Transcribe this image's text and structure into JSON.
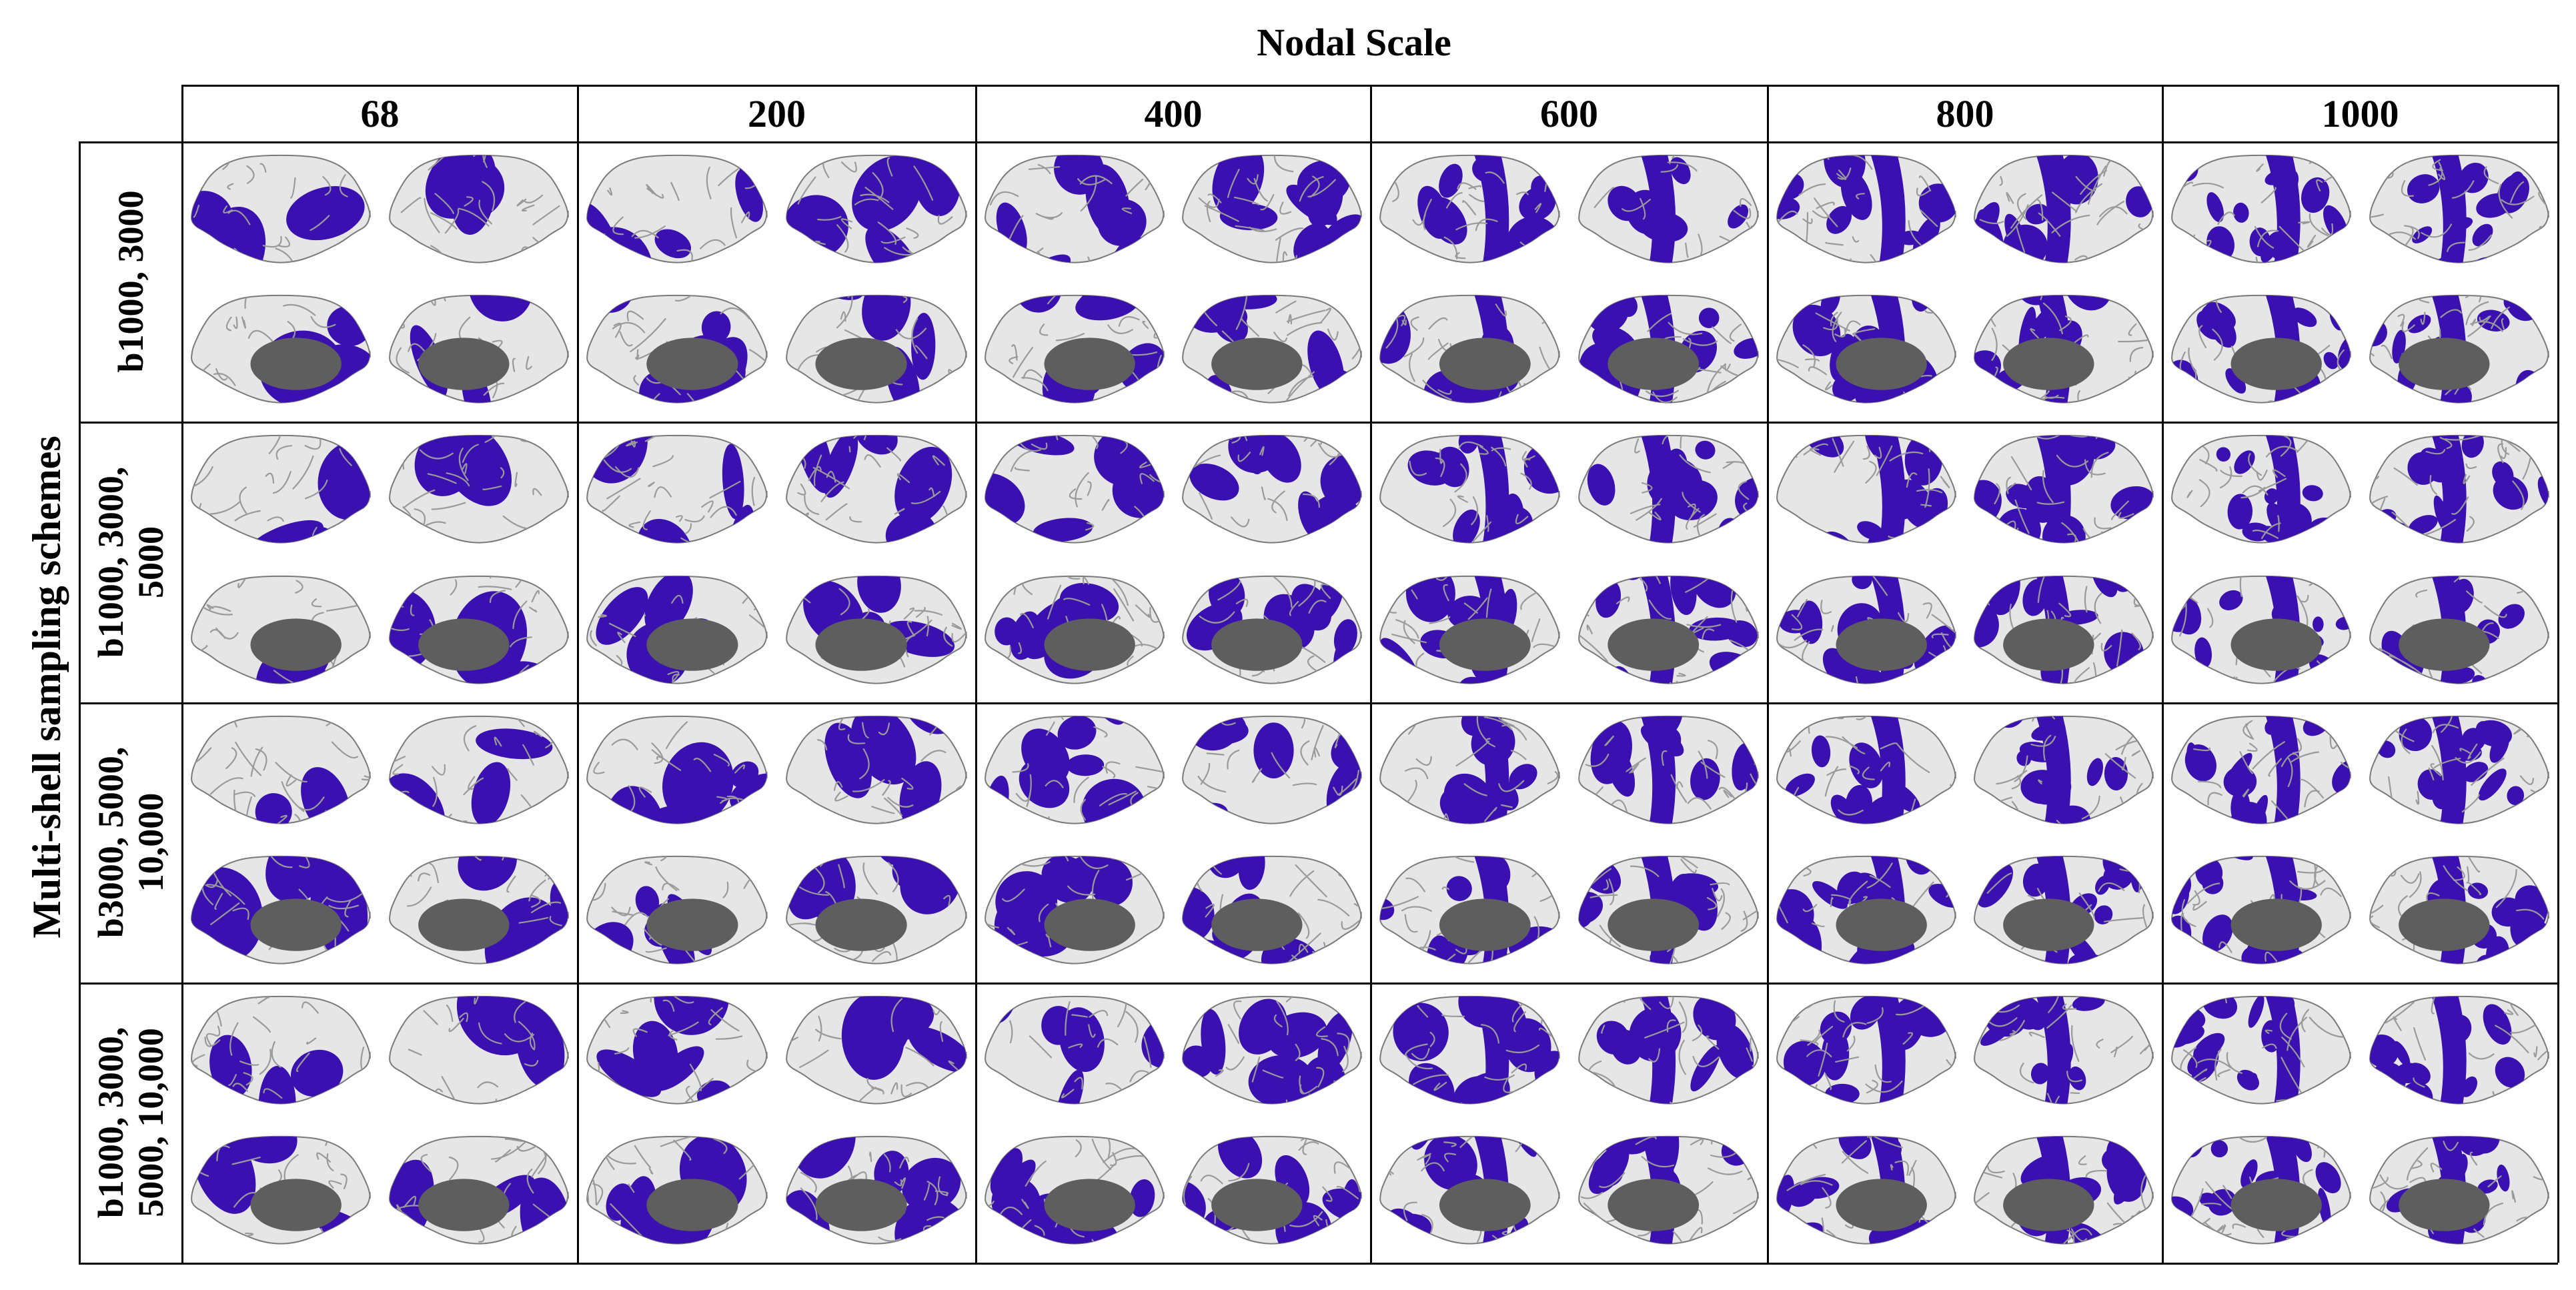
{
  "figure": {
    "title": "Nodal Scale",
    "y_axis_label": "Multi-shell  sampling schemes",
    "columns": [
      "68",
      "200",
      "400",
      "600",
      "800",
      "1000"
    ],
    "rows": [
      {
        "lines": [
          "b1000, 3000"
        ]
      },
      {
        "lines": [
          "b1000, 3000,",
          "5000"
        ]
      },
      {
        "lines": [
          "b3000, 5000,",
          "10,000"
        ]
      },
      {
        "lines": [
          "b1000, 3000,",
          "5000, 10,000"
        ]
      }
    ],
    "views": [
      "left-lateral",
      "right-lateral",
      "left-medial",
      "right-medial"
    ],
    "colors": {
      "cortex": "#e6e6e6",
      "sulcus": "#9a9a9a",
      "highlight": "#3a10b0",
      "medial_wall": "#5e5e5e",
      "grid": "#000000"
    }
  }
}
